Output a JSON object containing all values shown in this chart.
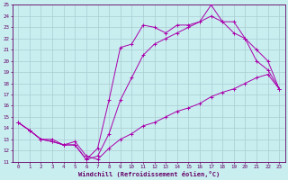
{
  "xlabel": "Windchill (Refroidissement éolien,°C)",
  "bg_color": "#c8eef0",
  "grid_color": "#aaccd0",
  "line_color": "#aa00aa",
  "xlim": [
    -0.5,
    23.5
  ],
  "ylim": [
    11,
    25
  ],
  "xticks": [
    0,
    1,
    2,
    3,
    4,
    5,
    6,
    7,
    8,
    9,
    10,
    11,
    12,
    13,
    14,
    15,
    16,
    17,
    18,
    19,
    20,
    21,
    22,
    23
  ],
  "yticks": [
    11,
    12,
    13,
    14,
    15,
    16,
    17,
    18,
    19,
    20,
    21,
    22,
    23,
    24,
    25
  ],
  "series1_x": [
    0,
    1,
    2,
    3,
    4,
    5,
    6,
    7,
    8,
    9,
    10,
    11,
    12,
    13,
    14,
    15,
    16,
    17,
    18,
    19,
    20,
    21,
    22,
    23
  ],
  "series1_y": [
    14.5,
    13.8,
    13.0,
    13.0,
    12.5,
    12.5,
    11.2,
    12.2,
    16.5,
    21.2,
    21.5,
    23.2,
    23.0,
    22.5,
    23.2,
    23.2,
    23.5,
    25.0,
    23.5,
    23.5,
    22.0,
    20.0,
    19.2,
    17.5
  ],
  "series2_x": [
    0,
    1,
    2,
    3,
    4,
    5,
    6,
    7,
    8,
    9,
    10,
    11,
    12,
    13,
    14,
    15,
    16,
    17,
    18,
    19,
    20,
    21,
    22,
    23
  ],
  "series2_y": [
    14.5,
    13.8,
    13.0,
    12.8,
    12.5,
    12.8,
    11.5,
    11.2,
    12.2,
    13.0,
    13.5,
    14.2,
    14.5,
    15.0,
    15.5,
    15.8,
    16.2,
    16.8,
    17.2,
    17.5,
    18.0,
    18.5,
    18.8,
    17.5
  ],
  "series3_x": [
    0,
    1,
    2,
    3,
    4,
    5,
    6,
    7,
    8,
    9,
    10,
    11,
    12,
    13,
    14,
    15,
    16,
    17,
    18,
    19,
    20,
    21,
    22,
    23
  ],
  "series3_y": [
    14.5,
    13.8,
    13.0,
    12.8,
    12.5,
    12.5,
    11.2,
    11.5,
    13.5,
    16.5,
    18.5,
    20.5,
    21.5,
    22.0,
    22.5,
    23.0,
    23.5,
    24.0,
    23.5,
    22.5,
    22.0,
    21.0,
    20.0,
    17.5
  ],
  "tick_fontsize": 4.2,
  "xlabel_fontsize": 5.0,
  "linewidth": 0.7,
  "markersize": 2.5
}
